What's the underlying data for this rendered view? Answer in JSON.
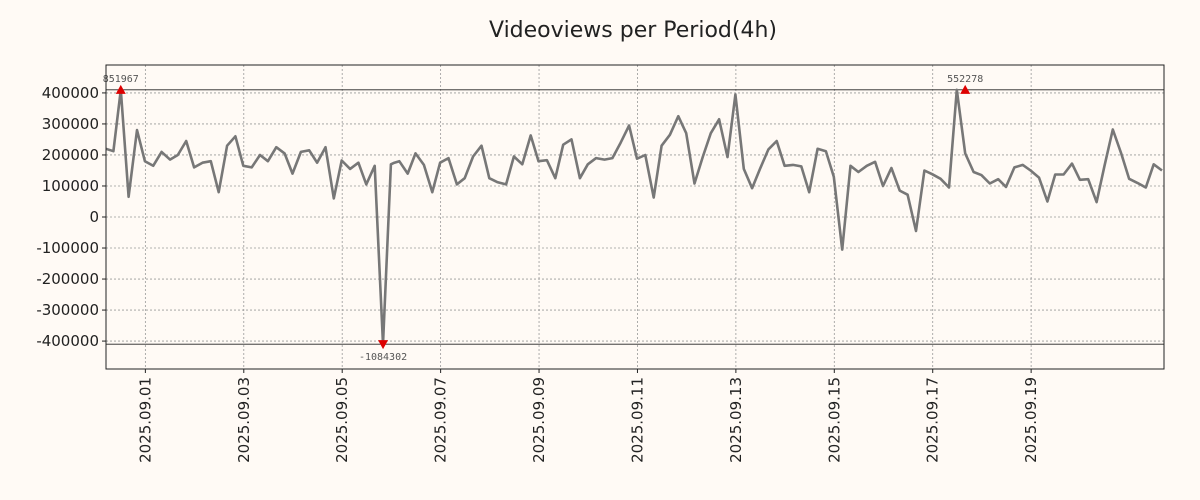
{
  "chart_data": {
    "type": "line",
    "title": "Videoviews per Period(4h)",
    "xlabel": "",
    "ylabel": "",
    "ylim": [
      -490000,
      490000
    ],
    "xlim_days": [
      -0.8,
      20.7
    ],
    "y_ticks": [
      400000,
      300000,
      200000,
      100000,
      0,
      -100000,
      -200000,
      -300000,
      -400000
    ],
    "y_tick_labels": [
      "400000",
      "300000",
      "200000",
      "100000",
      "0",
      "-100000",
      "-200000",
      "-300000",
      "-400000"
    ],
    "x_ticks_days": [
      0,
      2,
      4,
      6,
      8,
      10,
      12,
      14,
      16,
      18
    ],
    "x_tick_labels": [
      "2025.09.01",
      "2025.09.03",
      "2025.09.05",
      "2025.09.07",
      "2025.09.09",
      "2025.09.11",
      "2025.09.13",
      "2025.09.15",
      "2025.09.17",
      "2025.09.19"
    ],
    "clip_lines": [
      410000,
      -410000
    ],
    "series": [
      {
        "name": "Videoviews",
        "color": "#777777",
        "x": [
          -0.8,
          -0.65,
          -0.5,
          -0.34,
          -0.17,
          -0.01,
          0.16,
          0.33,
          0.5,
          0.66,
          0.83,
          0.99,
          1.16,
          1.33,
          1.49,
          1.66,
          1.83,
          1.99,
          2.16,
          2.33,
          2.49,
          2.66,
          2.83,
          2.99,
          3.16,
          3.33,
          3.49,
          3.66,
          3.83,
          3.99,
          4.16,
          4.33,
          4.49,
          4.66,
          4.83,
          4.99,
          5.06,
          5.16,
          5.33,
          5.49,
          5.66,
          5.83,
          5.99,
          6.16,
          6.33,
          6.49,
          6.66,
          6.83,
          6.99,
          7.16,
          7.33,
          7.49,
          7.66,
          7.83,
          7.99,
          8.16,
          8.33,
          8.49,
          8.66,
          8.83,
          8.99,
          9.16,
          9.33,
          9.49,
          9.66,
          9.83,
          9.99,
          10.16,
          10.33,
          10.49,
          10.66,
          10.83,
          10.99,
          11.16,
          11.33,
          11.49,
          11.66,
          11.83,
          11.99,
          12.16,
          12.33,
          12.49,
          12.66,
          12.83,
          12.99,
          13.16,
          13.33,
          13.49,
          13.66,
          13.83,
          13.99,
          14.16,
          14.33,
          14.49,
          14.66,
          14.83,
          14.99,
          15.16,
          15.33,
          15.49,
          15.66,
          15.83,
          15.99,
          16.16,
          16.33,
          16.49,
          16.66,
          16.83,
          16.99,
          17.16,
          17.33,
          17.49,
          17.66,
          17.83,
          17.99,
          18.16,
          18.33,
          18.49,
          18.66,
          18.83,
          18.99,
          19.16,
          19.33,
          19.49,
          19.66,
          19.83,
          19.99,
          20.16,
          20.33,
          20.49,
          20.66
        ],
        "y": [
          220000,
          212000,
          410000,
          65000,
          280000,
          180000,
          165000,
          210000,
          185000,
          200000,
          245000,
          160000,
          175000,
          180000,
          80000,
          230000,
          260000,
          165000,
          160000,
          200000,
          180000,
          225000,
          205000,
          140000,
          210000,
          215000,
          175000,
          225000,
          60000,
          182000,
          155000,
          175000,
          105000,
          165000,
          -410000,
          170000,
          175000,
          180000,
          140000,
          205000,
          168000,
          80000,
          175000,
          190000,
          105000,
          125000,
          195000,
          230000,
          125000,
          112000,
          105000,
          195000,
          170000,
          263000,
          180000,
          183000,
          125000,
          233000,
          250000,
          125000,
          170000,
          190000,
          185000,
          190000,
          240000,
          295000,
          188000,
          200000,
          63000,
          230000,
          265000,
          325000,
          270000,
          108000,
          195000,
          270000,
          315000,
          193000,
          395000,
          155000,
          93000,
          155000,
          218000,
          245000,
          165000,
          168000,
          163000,
          80000,
          220000,
          212000,
          130000,
          -105000,
          165000,
          145000,
          165000,
          178000,
          100000,
          158000,
          85000,
          72000,
          -45000,
          150000,
          138000,
          123000,
          95000,
          410000,
          205000,
          145000,
          135000,
          108000,
          122000,
          97000,
          160000,
          168000,
          150000,
          127000,
          50000,
          137000,
          137000,
          172000,
          120000,
          122000,
          48000,
          165000,
          282000,
          205000,
          123000,
          110000,
          95000,
          170000,
          150000
        ]
      }
    ],
    "annotations": [
      {
        "label": "851967",
        "x": -0.5,
        "y": 410000,
        "position": "above"
      },
      {
        "label": "-1084302",
        "x": 4.83,
        "y": -410000,
        "position": "below"
      },
      {
        "label": "552278",
        "x": 16.66,
        "y": 410000,
        "position": "above"
      }
    ],
    "marker_color": "#dd0000"
  }
}
